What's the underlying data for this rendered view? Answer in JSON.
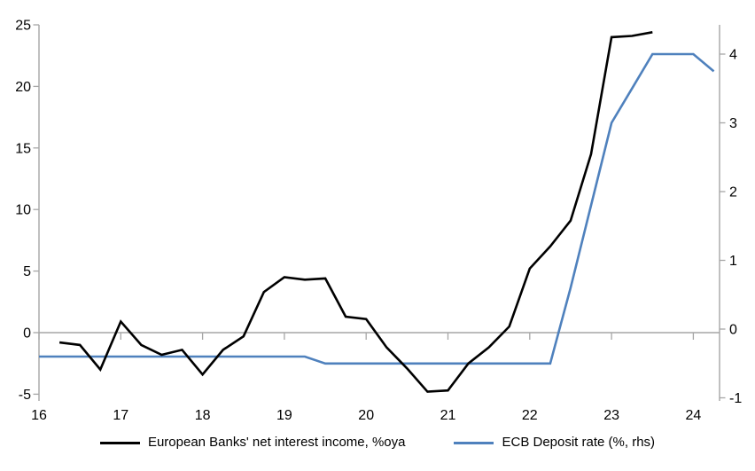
{
  "chart_data": {
    "type": "line",
    "title": "",
    "legend_position": "bottom",
    "grid": "off",
    "zero_line_on_left_axis": true,
    "x_axis": {
      "tick_labels": [
        "16",
        "17",
        "18",
        "19",
        "20",
        "21",
        "22",
        "23",
        "24"
      ],
      "tick_values": [
        16,
        17,
        18,
        19,
        20,
        21,
        22,
        23,
        24
      ],
      "range": [
        16,
        24.32
      ]
    },
    "left_axis": {
      "tick_labels": [
        "25",
        "20",
        "15",
        "10",
        "5",
        "0",
        "-5"
      ],
      "tick_values": [
        25,
        20,
        15,
        10,
        5,
        0,
        -5
      ],
      "range": [
        -5,
        25
      ]
    },
    "right_axis": {
      "tick_labels": [
        "4",
        "3",
        "2",
        "1",
        "0",
        "-1"
      ],
      "tick_values": [
        4,
        3,
        2,
        1,
        0,
        -1
      ],
      "range": [
        -1,
        4.5
      ]
    },
    "series": [
      {
        "name": "European Banks' net interest income, %oya",
        "axis": "left",
        "color": "#000000",
        "x": [
          16.25,
          16.5,
          16.75,
          17.0,
          17.25,
          17.5,
          17.75,
          18.0,
          18.25,
          18.5,
          18.75,
          19.0,
          19.25,
          19.5,
          19.75,
          20.0,
          20.25,
          20.5,
          20.75,
          21.0,
          21.25,
          21.5,
          21.75,
          22.0,
          22.25,
          22.5,
          22.75,
          23.0,
          23.25,
          23.5
        ],
        "y": [
          -0.8,
          -1.0,
          -3.0,
          0.9,
          -1.0,
          -1.8,
          -1.4,
          -3.4,
          -1.4,
          -0.3,
          3.3,
          4.5,
          4.3,
          4.4,
          1.3,
          1.1,
          -1.2,
          -2.9,
          -4.8,
          -4.7,
          -2.5,
          -1.2,
          0.5,
          5.2,
          7.0,
          9.1,
          14.5,
          24.0,
          24.1,
          24.4
        ]
      },
      {
        "name": "ECB Deposit rate (%, rhs)",
        "axis": "right",
        "color": "#4F81BD",
        "x": [
          16.0,
          16.25,
          16.5,
          16.75,
          17.0,
          17.25,
          17.5,
          17.75,
          18.0,
          18.25,
          18.5,
          18.75,
          19.0,
          19.25,
          19.5,
          19.75,
          20.0,
          20.25,
          20.5,
          20.75,
          21.0,
          21.25,
          21.5,
          21.75,
          22.0,
          22.25,
          22.5,
          22.75,
          23.0,
          23.25,
          23.5,
          23.75,
          24.0,
          24.25
        ],
        "y": [
          -0.4,
          -0.4,
          -0.4,
          -0.4,
          -0.4,
          -0.4,
          -0.4,
          -0.4,
          -0.4,
          -0.4,
          -0.4,
          -0.4,
          -0.4,
          -0.4,
          -0.5,
          -0.5,
          -0.5,
          -0.5,
          -0.5,
          -0.5,
          -0.5,
          -0.5,
          -0.5,
          -0.5,
          -0.5,
          -0.5,
          0.6,
          1.8,
          3.0,
          3.5,
          4.0,
          4.0,
          4.0,
          3.75
        ]
      }
    ]
  },
  "colors": {
    "axis_gray": "#A6A6A6",
    "text": "#000000",
    "background": "#FFFFFF",
    "nii_line": "#000000",
    "ecb_line": "#4F81BD"
  },
  "legend": {
    "nii_label": "European Banks' net interest income, %oya",
    "ecb_label": "ECB Deposit rate (%, rhs)"
  }
}
